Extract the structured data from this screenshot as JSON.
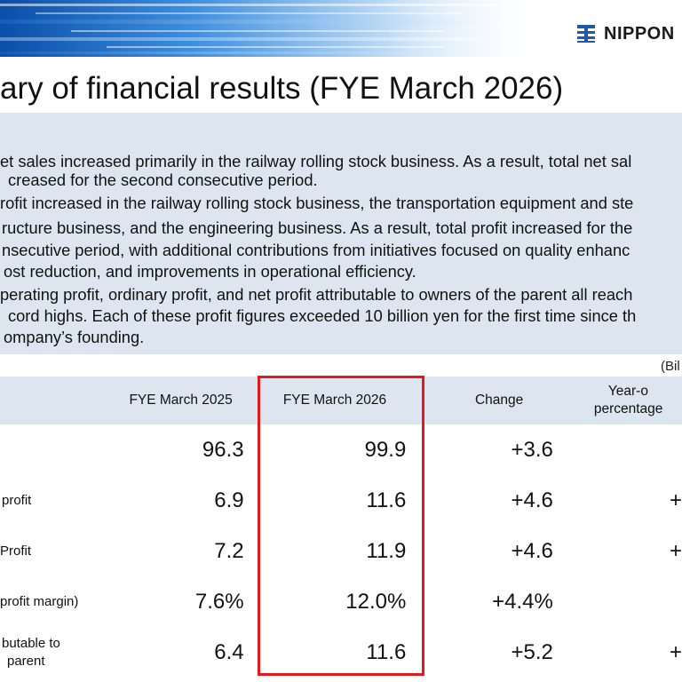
{
  "brand": {
    "logo_text": "NIPPON",
    "logo_icon": "nippon-sharyo-logo-icon",
    "accent": "#1e5aa8"
  },
  "title": "ary of financial results (FYE March 2026)",
  "summary": {
    "lines": [
      "et sales increased primarily in the railway rolling stock business. As a result, total net sal",
      "creased for the second consecutive period.",
      "rofit increased in the railway rolling stock business, the transportation equipment and ste",
      "ructure business, and the engineering business. As a result, total profit increased for the",
      "nsecutive period, with additional contributions from initiatives focused on quality enhanc",
      "ost reduction, and improvements in operational efficiency.",
      "perating profit, ordinary profit, and net profit attributable to owners of the parent all reach",
      "cord highs. Each of these profit figures exceeded 10 billion yen for the first time since th",
      "ompany’s founding."
    ]
  },
  "unit_note": "(Bil",
  "table": {
    "headers": {
      "label": "",
      "fye2025": "FYE March 2025",
      "fye2026": "FYE March 2026",
      "change": "Change",
      "yoy_line1": "Year-o",
      "yoy_line2": "percentage"
    },
    "rows": [
      {
        "label": "",
        "fye2025": "96.3",
        "fye2026": "99.9",
        "change": "+3.6",
        "yoy": ""
      },
      {
        "label": "profit",
        "fye2025": "6.9",
        "fye2026": "11.6",
        "change": "+4.6",
        "yoy": "+"
      },
      {
        "label": "Profit",
        "fye2025": "7.2",
        "fye2026": "11.9",
        "change": "+4.6",
        "yoy": "+"
      },
      {
        "label": "profit margin)",
        "fye2025": "7.6%",
        "fye2026": "12.0%",
        "change": "+4.4%",
        "yoy": ""
      },
      {
        "label_line1": "butable to",
        "label_line2": "parent",
        "fye2025": "6.4",
        "fye2026": "11.6",
        "change": "+5.2",
        "yoy": "+"
      }
    ]
  },
  "colors": {
    "highlight": "#e3191b",
    "panel": "#dde6f0"
  }
}
